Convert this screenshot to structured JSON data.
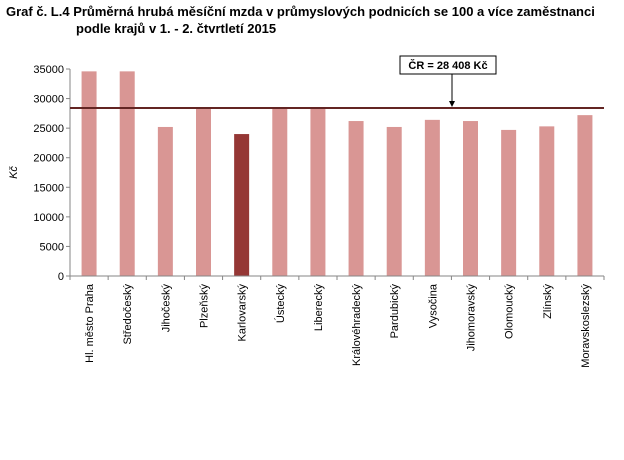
{
  "chart_data": {
    "type": "bar",
    "title_line1": "Graf č. L.4 Průměrná hrubá měsíční mzda v průmyslových podnicích se 100 a více zaměstnanci",
    "title_line2": "podle krajů v 1. - 2. čtvrtletí 2015",
    "ylabel": "Kč",
    "ylim": [
      0,
      35000
    ],
    "yticks": [
      "0",
      "5000",
      "10000",
      "15000",
      "20000",
      "25000",
      "30000",
      "35000"
    ],
    "categories": [
      "Hl. město Praha",
      "Středočeský",
      "Jihočeský",
      "Plzeňský",
      "Karlovarský",
      "Ústecký",
      "Liberecký",
      "Královéhradecký",
      "Pardubický",
      "Vysočina",
      "Jihomoravský",
      "Olomoucký",
      "Zlínský",
      "Moravskoslezský"
    ],
    "values": [
      34600,
      34600,
      25200,
      28400,
      24000,
      28400,
      28500,
      26200,
      25200,
      26400,
      26200,
      24700,
      25300,
      27200
    ],
    "highlight_index": 4,
    "reference_value": 28408,
    "reference_label": "ČR = 28 408 Kč",
    "bar_color": "#d99694",
    "highlight_color": "#953735",
    "line_color": "#632523",
    "grid": false,
    "legend": "none"
  }
}
